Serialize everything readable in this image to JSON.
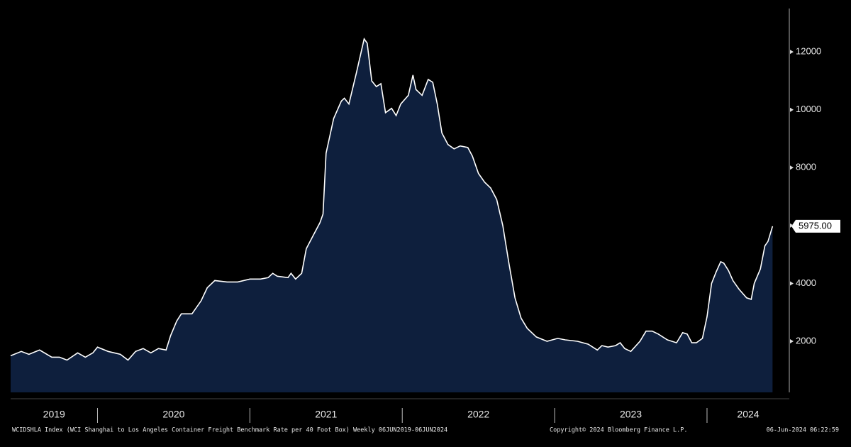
{
  "chart_data": {
    "type": "area",
    "footer_left": "WCIDSHLA Index (WCI Shanghai to Los Angeles Container Freight Benchmark Rate per 40 Foot Box)  Weekly 06JUN2019-06JUN2024",
    "footer_center": "Copyright© 2024 Bloomberg Finance L.P.",
    "footer_right": "06-Jun-2024 06:22:59",
    "color": "#0e1f3d",
    "line_color": "#ffffff",
    "x": [
      2019.43,
      2019.5,
      2019.55,
      2019.62,
      2019.7,
      2019.75,
      2019.8,
      2019.87,
      2019.92,
      2019.97,
      2020.0,
      2020.07,
      2020.15,
      2020.2,
      2020.25,
      2020.3,
      2020.35,
      2020.4,
      2020.45,
      2020.48,
      2020.52,
      2020.55,
      2020.62,
      2020.68,
      2020.72,
      2020.77,
      2020.85,
      2020.92,
      2021.0,
      2021.07,
      2021.12,
      2021.15,
      2021.18,
      2021.25,
      2021.27,
      2021.3,
      2021.34,
      2021.37,
      2021.41,
      2021.46,
      2021.48,
      2021.5,
      2021.55,
      2021.6,
      2021.62,
      2021.65,
      2021.7,
      2021.75,
      2021.77,
      2021.8,
      2021.83,
      2021.86,
      2021.89,
      2021.93,
      2021.96,
      2021.99,
      2022.04,
      2022.07,
      2022.09,
      2022.13,
      2022.17,
      2022.2,
      2022.23,
      2022.26,
      2022.3,
      2022.34,
      2022.38,
      2022.43,
      2022.46,
      2022.5,
      2022.54,
      2022.58,
      2022.62,
      2022.66,
      2022.7,
      2022.74,
      2022.78,
      2022.82,
      2022.88,
      2022.95,
      2023.02,
      2023.07,
      2023.15,
      2023.22,
      2023.28,
      2023.31,
      2023.35,
      2023.4,
      2023.43,
      2023.46,
      2023.5,
      2023.56,
      2023.6,
      2023.64,
      2023.68,
      2023.74,
      2023.8,
      2023.84,
      2023.87,
      2023.9,
      2023.93,
      2023.97,
      2024.0,
      2024.03,
      2024.06,
      2024.09,
      2024.11,
      2024.14,
      2024.17,
      2024.21,
      2024.26,
      2024.29,
      2024.31,
      2024.35,
      2024.38,
      2024.4,
      2024.43
    ],
    "values": [
      1500,
      1650,
      1550,
      1700,
      1450,
      1450,
      1350,
      1600,
      1450,
      1600,
      1800,
      1650,
      1550,
      1350,
      1650,
      1750,
      1600,
      1750,
      1700,
      2200,
      2700,
      2950,
      2950,
      3400,
      3850,
      4100,
      4050,
      4050,
      4150,
      4150,
      4200,
      4350,
      4250,
      4200,
      4350,
      4150,
      4350,
      5200,
      5600,
      6100,
      6400,
      8500,
      9700,
      10300,
      10400,
      10200,
      11300,
      12450,
      12300,
      11000,
      10800,
      10900,
      9900,
      10050,
      9800,
      10200,
      10500,
      11200,
      10700,
      10500,
      11050,
      10950,
      10200,
      9200,
      8800,
      8650,
      8750,
      8700,
      8400,
      7800,
      7500,
      7300,
      6900,
      6000,
      4700,
      3500,
      2800,
      2450,
      2150,
      2000,
      2100,
      2050,
      2000,
      1900,
      1700,
      1850,
      1800,
      1850,
      1950,
      1750,
      1650,
      2000,
      2350,
      2350,
      2250,
      2050,
      1950,
      2300,
      2250,
      1950,
      1950,
      2100,
      2850,
      4000,
      4400,
      4750,
      4700,
      4450,
      4100,
      3800,
      3500,
      3450,
      4000,
      4500,
      5300,
      5450,
      5975
    ],
    "last_value_label": "5975.00",
    "xlim": [
      2019.43,
      2024.54
    ],
    "xticks": [
      2019,
      2020,
      2021,
      2022,
      2023,
      2024
    ],
    "ylim": [
      235,
      13500
    ],
    "yticks": [
      2000,
      4000,
      6000,
      8000,
      10000,
      12000
    ],
    "ytick_labels_hidden": [
      6000
    ]
  }
}
